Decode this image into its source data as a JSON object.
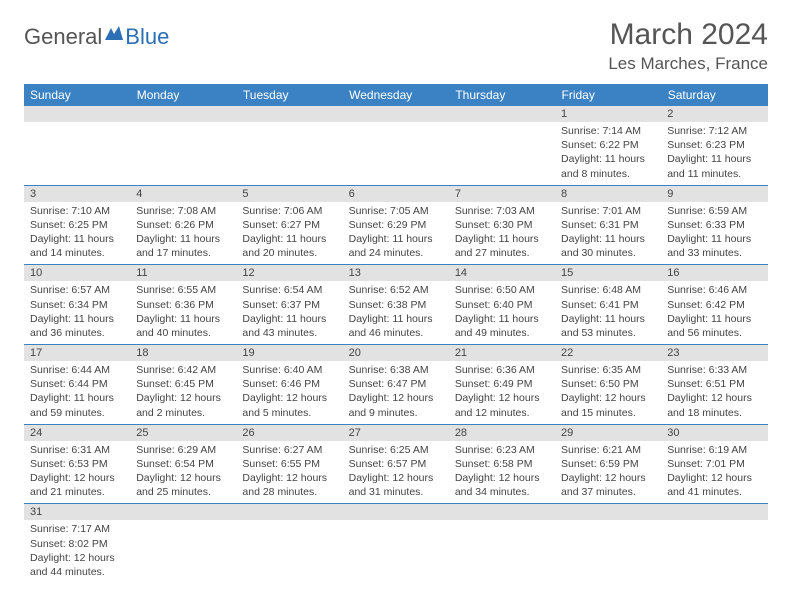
{
  "logo": {
    "text1": "General",
    "text2": "Blue"
  },
  "title": "March 2024",
  "location": "Les Marches, France",
  "colors": {
    "header_bg": "#3a82c4",
    "header_text": "#ffffff",
    "daynum_bg": "#e2e2e2",
    "border": "#3a82c4",
    "text": "#444444",
    "logo_gray": "#555555",
    "logo_blue": "#2b6fb5"
  },
  "weekdays": [
    "Sunday",
    "Monday",
    "Tuesday",
    "Wednesday",
    "Thursday",
    "Friday",
    "Saturday"
  ],
  "weeks": [
    [
      {
        "n": "",
        "sr": "",
        "ss": "",
        "dl": ""
      },
      {
        "n": "",
        "sr": "",
        "ss": "",
        "dl": ""
      },
      {
        "n": "",
        "sr": "",
        "ss": "",
        "dl": ""
      },
      {
        "n": "",
        "sr": "",
        "ss": "",
        "dl": ""
      },
      {
        "n": "",
        "sr": "",
        "ss": "",
        "dl": ""
      },
      {
        "n": "1",
        "sr": "Sunrise: 7:14 AM",
        "ss": "Sunset: 6:22 PM",
        "dl": "Daylight: 11 hours and 8 minutes."
      },
      {
        "n": "2",
        "sr": "Sunrise: 7:12 AM",
        "ss": "Sunset: 6:23 PM",
        "dl": "Daylight: 11 hours and 11 minutes."
      }
    ],
    [
      {
        "n": "3",
        "sr": "Sunrise: 7:10 AM",
        "ss": "Sunset: 6:25 PM",
        "dl": "Daylight: 11 hours and 14 minutes."
      },
      {
        "n": "4",
        "sr": "Sunrise: 7:08 AM",
        "ss": "Sunset: 6:26 PM",
        "dl": "Daylight: 11 hours and 17 minutes."
      },
      {
        "n": "5",
        "sr": "Sunrise: 7:06 AM",
        "ss": "Sunset: 6:27 PM",
        "dl": "Daylight: 11 hours and 20 minutes."
      },
      {
        "n": "6",
        "sr": "Sunrise: 7:05 AM",
        "ss": "Sunset: 6:29 PM",
        "dl": "Daylight: 11 hours and 24 minutes."
      },
      {
        "n": "7",
        "sr": "Sunrise: 7:03 AM",
        "ss": "Sunset: 6:30 PM",
        "dl": "Daylight: 11 hours and 27 minutes."
      },
      {
        "n": "8",
        "sr": "Sunrise: 7:01 AM",
        "ss": "Sunset: 6:31 PM",
        "dl": "Daylight: 11 hours and 30 minutes."
      },
      {
        "n": "9",
        "sr": "Sunrise: 6:59 AM",
        "ss": "Sunset: 6:33 PM",
        "dl": "Daylight: 11 hours and 33 minutes."
      }
    ],
    [
      {
        "n": "10",
        "sr": "Sunrise: 6:57 AM",
        "ss": "Sunset: 6:34 PM",
        "dl": "Daylight: 11 hours and 36 minutes."
      },
      {
        "n": "11",
        "sr": "Sunrise: 6:55 AM",
        "ss": "Sunset: 6:36 PM",
        "dl": "Daylight: 11 hours and 40 minutes."
      },
      {
        "n": "12",
        "sr": "Sunrise: 6:54 AM",
        "ss": "Sunset: 6:37 PM",
        "dl": "Daylight: 11 hours and 43 minutes."
      },
      {
        "n": "13",
        "sr": "Sunrise: 6:52 AM",
        "ss": "Sunset: 6:38 PM",
        "dl": "Daylight: 11 hours and 46 minutes."
      },
      {
        "n": "14",
        "sr": "Sunrise: 6:50 AM",
        "ss": "Sunset: 6:40 PM",
        "dl": "Daylight: 11 hours and 49 minutes."
      },
      {
        "n": "15",
        "sr": "Sunrise: 6:48 AM",
        "ss": "Sunset: 6:41 PM",
        "dl": "Daylight: 11 hours and 53 minutes."
      },
      {
        "n": "16",
        "sr": "Sunrise: 6:46 AM",
        "ss": "Sunset: 6:42 PM",
        "dl": "Daylight: 11 hours and 56 minutes."
      }
    ],
    [
      {
        "n": "17",
        "sr": "Sunrise: 6:44 AM",
        "ss": "Sunset: 6:44 PM",
        "dl": "Daylight: 11 hours and 59 minutes."
      },
      {
        "n": "18",
        "sr": "Sunrise: 6:42 AM",
        "ss": "Sunset: 6:45 PM",
        "dl": "Daylight: 12 hours and 2 minutes."
      },
      {
        "n": "19",
        "sr": "Sunrise: 6:40 AM",
        "ss": "Sunset: 6:46 PM",
        "dl": "Daylight: 12 hours and 5 minutes."
      },
      {
        "n": "20",
        "sr": "Sunrise: 6:38 AM",
        "ss": "Sunset: 6:47 PM",
        "dl": "Daylight: 12 hours and 9 minutes."
      },
      {
        "n": "21",
        "sr": "Sunrise: 6:36 AM",
        "ss": "Sunset: 6:49 PM",
        "dl": "Daylight: 12 hours and 12 minutes."
      },
      {
        "n": "22",
        "sr": "Sunrise: 6:35 AM",
        "ss": "Sunset: 6:50 PM",
        "dl": "Daylight: 12 hours and 15 minutes."
      },
      {
        "n": "23",
        "sr": "Sunrise: 6:33 AM",
        "ss": "Sunset: 6:51 PM",
        "dl": "Daylight: 12 hours and 18 minutes."
      }
    ],
    [
      {
        "n": "24",
        "sr": "Sunrise: 6:31 AM",
        "ss": "Sunset: 6:53 PM",
        "dl": "Daylight: 12 hours and 21 minutes."
      },
      {
        "n": "25",
        "sr": "Sunrise: 6:29 AM",
        "ss": "Sunset: 6:54 PM",
        "dl": "Daylight: 12 hours and 25 minutes."
      },
      {
        "n": "26",
        "sr": "Sunrise: 6:27 AM",
        "ss": "Sunset: 6:55 PM",
        "dl": "Daylight: 12 hours and 28 minutes."
      },
      {
        "n": "27",
        "sr": "Sunrise: 6:25 AM",
        "ss": "Sunset: 6:57 PM",
        "dl": "Daylight: 12 hours and 31 minutes."
      },
      {
        "n": "28",
        "sr": "Sunrise: 6:23 AM",
        "ss": "Sunset: 6:58 PM",
        "dl": "Daylight: 12 hours and 34 minutes."
      },
      {
        "n": "29",
        "sr": "Sunrise: 6:21 AM",
        "ss": "Sunset: 6:59 PM",
        "dl": "Daylight: 12 hours and 37 minutes."
      },
      {
        "n": "30",
        "sr": "Sunrise: 6:19 AM",
        "ss": "Sunset: 7:01 PM",
        "dl": "Daylight: 12 hours and 41 minutes."
      }
    ],
    [
      {
        "n": "31",
        "sr": "Sunrise: 7:17 AM",
        "ss": "Sunset: 8:02 PM",
        "dl": "Daylight: 12 hours and 44 minutes."
      },
      {
        "n": "",
        "sr": "",
        "ss": "",
        "dl": ""
      },
      {
        "n": "",
        "sr": "",
        "ss": "",
        "dl": ""
      },
      {
        "n": "",
        "sr": "",
        "ss": "",
        "dl": ""
      },
      {
        "n": "",
        "sr": "",
        "ss": "",
        "dl": ""
      },
      {
        "n": "",
        "sr": "",
        "ss": "",
        "dl": ""
      },
      {
        "n": "",
        "sr": "",
        "ss": "",
        "dl": ""
      }
    ]
  ]
}
